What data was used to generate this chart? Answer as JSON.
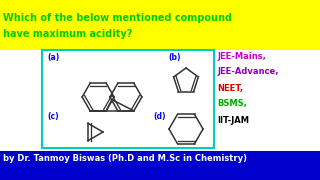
{
  "bg_color": "#ffffff",
  "question_text1": "Which of the below mentioned compound",
  "question_text2": "have maximum acidity?",
  "question_bg": "#ffff00",
  "question_color": "#00cc00",
  "box_border_color": "#00cccc",
  "label_color": "#0000ff",
  "label_a": "(a)",
  "label_b": "(b)",
  "label_c": "(c)",
  "label_d": "(d)",
  "right_labels": [
    "JEE-Mains,",
    "JEE-Advance,",
    "NEET,",
    "BSMS,",
    "IIT-JAM"
  ],
  "right_colors": [
    "#cc00cc",
    "#8800cc",
    "#dd0000",
    "#00aa00",
    "#000000"
  ],
  "footer_text": "by Dr. Tanmoy Biswas (Ph.D and M.Sc in Chemistry)",
  "footer_bg": "#0000cc",
  "footer_color": "#ffffff"
}
